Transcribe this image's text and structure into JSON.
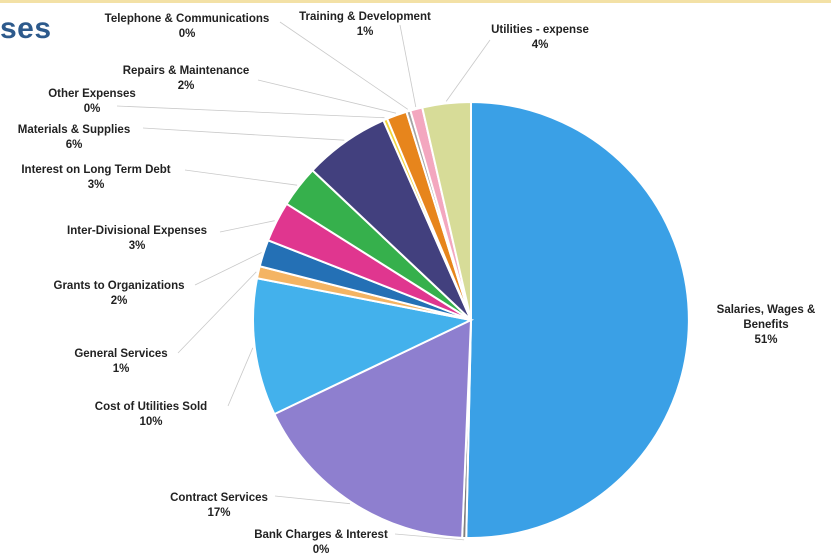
{
  "page": {
    "title": "ses"
  },
  "chart_data": {
    "type": "pie",
    "title": "ses",
    "start_angle_deg": 0,
    "direction": "clockwise",
    "slices": [
      {
        "name": "Salaries, Wages & Benefits",
        "label_lines": [
          "Salaries, Wages &",
          "Benefits"
        ],
        "pct_label": "51%",
        "value": 50.5,
        "color": "#3aa0e6"
      },
      {
        "name": "Bank Charges & Interest",
        "label_lines": [
          "Bank Charges & Interest"
        ],
        "pct_label": "0%",
        "value": 0.3,
        "color": "#7f7f7f"
      },
      {
        "name": "Contract Services",
        "label_lines": [
          "Contract Services"
        ],
        "pct_label": "17%",
        "value": 17.3,
        "color": "#8e7fcf"
      },
      {
        "name": "Cost of Utilities Sold",
        "label_lines": [
          "Cost of Utilities Sold"
        ],
        "pct_label": "10%",
        "value": 10.2,
        "color": "#43b1ec"
      },
      {
        "name": "General Services",
        "label_lines": [
          "General Services"
        ],
        "pct_label": "1%",
        "value": 0.9,
        "color": "#f4b463"
      },
      {
        "name": "Grants to Organizations",
        "label_lines": [
          "Grants to Organizations"
        ],
        "pct_label": "2%",
        "value": 2.0,
        "color": "#2470b5"
      },
      {
        "name": "Inter-Divisional Expenses",
        "label_lines": [
          "Inter-Divisional Expenses"
        ],
        "pct_label": "3%",
        "value": 3.0,
        "color": "#e0368f"
      },
      {
        "name": "Interest on Long Term Debt",
        "label_lines": [
          "Interest on Long Term Debt"
        ],
        "pct_label": "3%",
        "value": 3.1,
        "color": "#36b04c"
      },
      {
        "name": "Materials & Supplies",
        "label_lines": [
          "Materials & Supplies"
        ],
        "pct_label": "6%",
        "value": 6.4,
        "color": "#42407e"
      },
      {
        "name": "Other Expenses",
        "label_lines": [
          "Other Expenses"
        ],
        "pct_label": "0%",
        "value": 0.3,
        "color": "#f2d43a"
      },
      {
        "name": "Repairs & Maintenance",
        "label_lines": [
          "Repairs & Maintenance"
        ],
        "pct_label": "2%",
        "value": 1.5,
        "color": "#e7851c"
      },
      {
        "name": "Telephone & Communications",
        "label_lines": [
          "Telephone & Communications"
        ],
        "pct_label": "0%",
        "value": 0.3,
        "color": "#a4a4a4"
      },
      {
        "name": "Training & Development",
        "label_lines": [
          "Training & Development"
        ],
        "pct_label": "1%",
        "value": 0.9,
        "color": "#f3a7bf"
      },
      {
        "name": "Utilities - expense",
        "label_lines": [
          "Utilities - expense"
        ],
        "pct_label": "4%",
        "value": 3.6,
        "color": "#d7dc98"
      }
    ]
  }
}
